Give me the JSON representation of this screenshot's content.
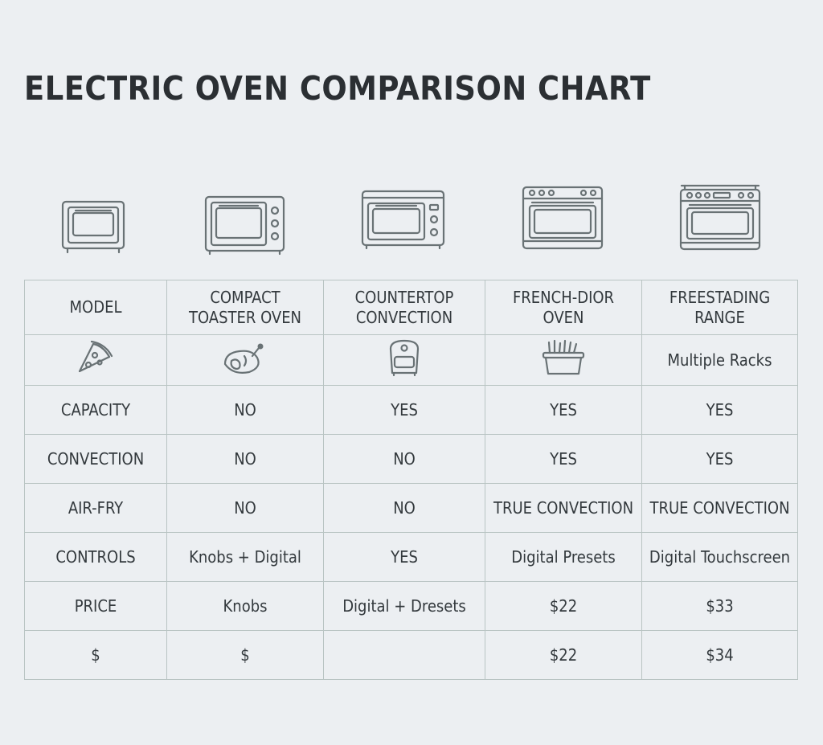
{
  "chart_data": {
    "type": "table",
    "title": "ELECTRIC OVEN COMPARISON CHART",
    "columns": [
      {
        "header_line1": "MODEL",
        "header_line2": ""
      },
      {
        "header_line1": "COMPACT",
        "header_line2": "TOASTER OVEN"
      },
      {
        "header_line1": "COUNTERTOP",
        "header_line2": "CONVECTION"
      },
      {
        "header_line1": "FRENCH-DIOR",
        "header_line2": "OVEN"
      },
      {
        "header_line1": "FREESTADING",
        "header_line2": "RANGE"
      }
    ],
    "icon_row": [
      {
        "icon": "pizza-slice-icon",
        "text": ""
      },
      {
        "icon": "roast-chicken-icon",
        "text": ""
      },
      {
        "icon": "air-fryer-icon",
        "text": ""
      },
      {
        "icon": "fries-basket-icon",
        "text": ""
      },
      {
        "icon": "",
        "text": "Multiple Racks"
      }
    ],
    "rows": [
      {
        "label": "CAPACITY",
        "cells": [
          "NO",
          "YES",
          "YES",
          "YES"
        ]
      },
      {
        "label": "CONVECTION",
        "cells": [
          "NO",
          "NO",
          "YES",
          "YES"
        ]
      },
      {
        "label": "AIR-FRY",
        "cells": [
          "NO",
          "NO",
          "TRUE CONVECTION",
          "TRUE CONVECTION"
        ]
      },
      {
        "label": "CONTROLS",
        "cells": [
          "Knobs + Digital",
          "YES",
          "Digital Presets",
          "Digital Touchscreen"
        ]
      },
      {
        "label": "PRICE",
        "cells": [
          "Knobs",
          "Digital + Dresets",
          "$22",
          "$33"
        ]
      },
      {
        "label": "$",
        "cells": [
          "$",
          "",
          "$22",
          "$34"
        ]
      }
    ],
    "oven_icons": [
      "toaster-oven-icon",
      "compact-oven-icon",
      "countertop-oven-icon",
      "french-door-oven-icon",
      "range-oven-icon"
    ],
    "colors": {
      "line": "#b9c4c3",
      "icon": "#697275",
      "background": "#eceff2",
      "text": "#33393d"
    }
  }
}
